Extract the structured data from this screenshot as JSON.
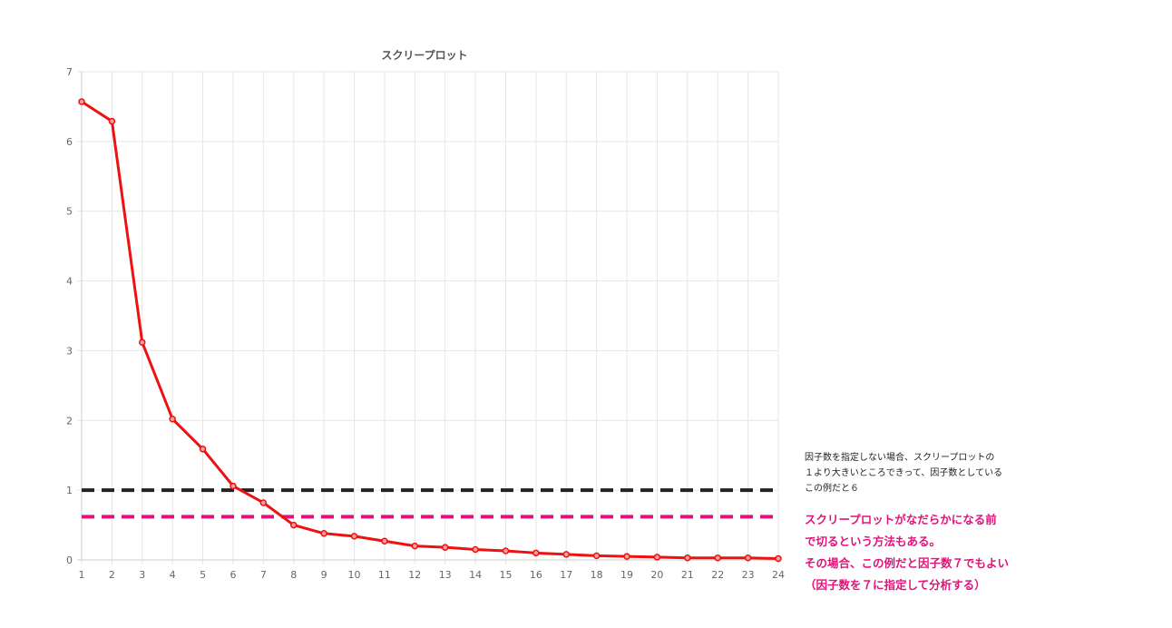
{
  "chart_data": {
    "type": "line",
    "title": "スクリープロット",
    "xlabel": "",
    "ylabel": "",
    "categories": [
      "1",
      "2",
      "3",
      "4",
      "5",
      "6",
      "7",
      "8",
      "9",
      "10",
      "11",
      "12",
      "13",
      "14",
      "15",
      "16",
      "17",
      "18",
      "19",
      "20",
      "21",
      "22",
      "23",
      "24"
    ],
    "series": [
      {
        "values": [
          6.57,
          6.29,
          3.12,
          2.02,
          1.59,
          1.06,
          0.82,
          0.5,
          0.38,
          0.34,
          0.27,
          0.2,
          0.18,
          0.15,
          0.13,
          0.1,
          0.08,
          0.06,
          0.05,
          0.04,
          0.03,
          0.03,
          0.03,
          0.02
        ],
        "color": "#ee1111"
      }
    ],
    "ylim": [
      0,
      7
    ],
    "yticks": [
      "0",
      "1",
      "2",
      "3",
      "4",
      "5",
      "6",
      "7"
    ],
    "grid": true,
    "reference_lines": [
      {
        "y": 1.0,
        "color": "#222222",
        "style": "dashed"
      },
      {
        "y": 0.62,
        "color": "#e2127a",
        "style": "dashed"
      }
    ]
  },
  "annotations": {
    "black_note": "因子数を指定しない場合、スクリープロットの\n１より大きいところできって、因子数としている\nこの例だと６",
    "pink_note": "スクリープロットがなだらかになる前\nで切るという方法もある。\nその場合、この例だと因子数７でもよい\n（因子数を７に指定して分析する）"
  }
}
